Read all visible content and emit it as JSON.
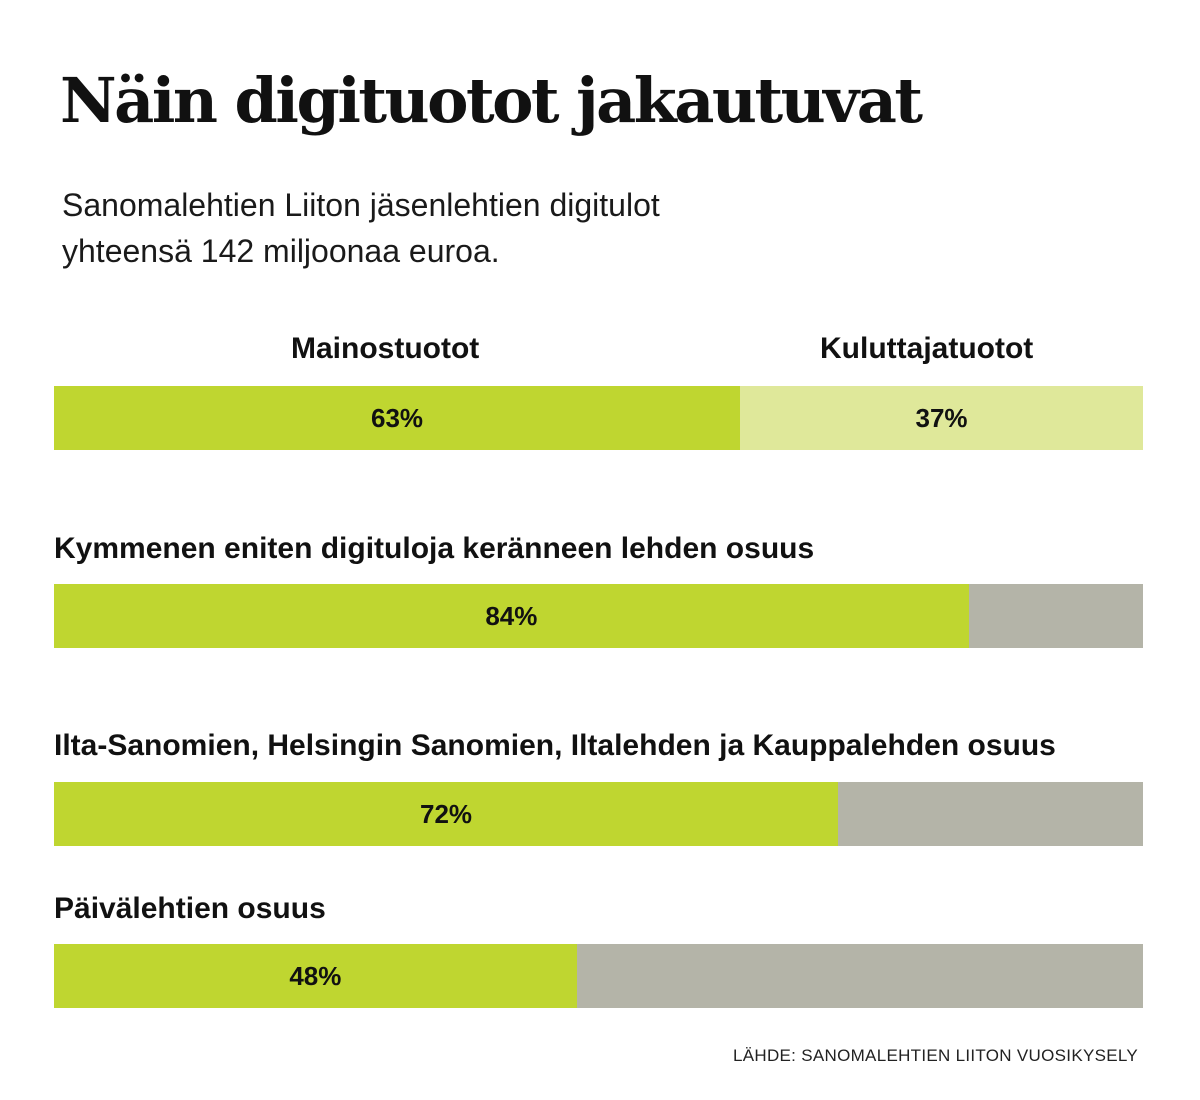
{
  "title": "Näin digituotot jakautuvat",
  "subtitle_line1": "Sanomalehtien Liiton jäsenlehtien digitulot",
  "subtitle_line2": "yhteensä 142 miljoonaa euroa.",
  "source": "LÄHDE: SANOMALEHTIEN LIITON VUOSIKYSELY",
  "colors": {
    "primary": "#bfd630",
    "secondary": "#dfe89a",
    "remainder": "#b4b4a8"
  },
  "chart_data": [
    {
      "type": "bar",
      "orientation": "horizontal-stacked",
      "categories": [
        "Mainostuotot",
        "Kuluttajatuotot"
      ],
      "values": [
        63,
        37
      ],
      "value_labels": [
        "63%",
        "37%"
      ],
      "unit": "%"
    },
    {
      "type": "bar",
      "orientation": "horizontal-stacked",
      "title": "Kymmenen eniten digituloja keränneen lehden osuus",
      "values": [
        84,
        16
      ],
      "value_label": "84%",
      "unit": "%"
    },
    {
      "type": "bar",
      "orientation": "horizontal-stacked",
      "title": "Ilta-Sanomien, Helsingin Sanomien, Iltalehden ja Kauppalehden osuus",
      "values": [
        72,
        28
      ],
      "value_label": "72%",
      "unit": "%"
    },
    {
      "type": "bar",
      "orientation": "horizontal-stacked",
      "title": "Päivälehtien osuus",
      "values": [
        48,
        52
      ],
      "value_label": "48%",
      "unit": "%"
    }
  ]
}
